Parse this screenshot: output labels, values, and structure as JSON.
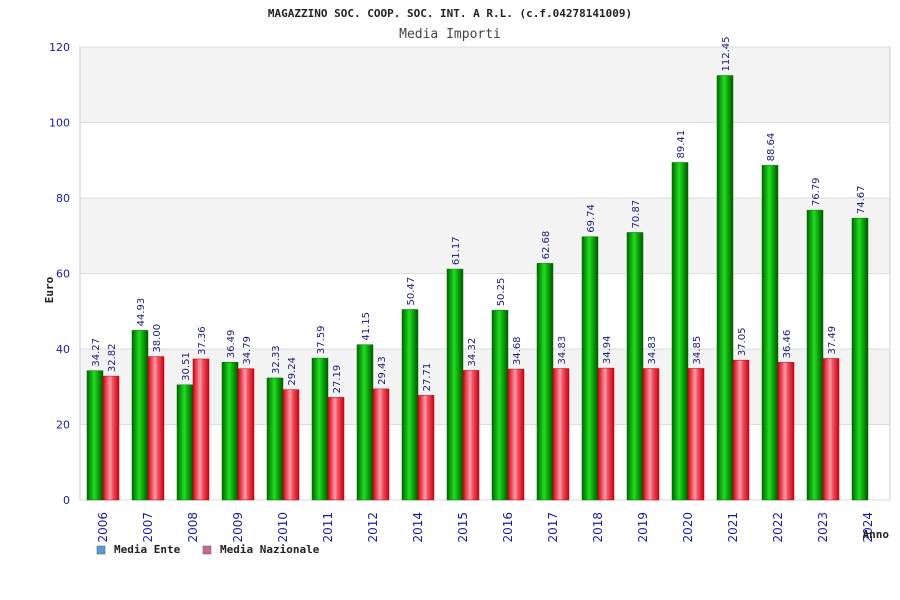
{
  "chart_data": {
    "type": "bar",
    "title": "MAGAZZINO SOC. COOP. SOC. INT. A R.L. (c.f.04278141009)",
    "subtitle": "Media Importi",
    "xlabel": "Anno",
    "ylabel": "Euro",
    "ylim": [
      0,
      120
    ],
    "yticks": [
      0,
      20,
      40,
      60,
      80,
      100,
      120
    ],
    "grid": true,
    "legend_position": "bottom-left",
    "categories": [
      "2006",
      "2007",
      "2008",
      "2009",
      "2010",
      "2011",
      "2012",
      "2014",
      "2015",
      "2016",
      "2017",
      "2018",
      "2019",
      "2020",
      "2021",
      "2022",
      "2023",
      "2024"
    ],
    "series": [
      {
        "name": "Media Ente",
        "color": "#00cc00",
        "legend_color": "#5b9bd5",
        "values": [
          34.27,
          44.93,
          30.51,
          36.49,
          32.33,
          37.59,
          41.15,
          50.47,
          61.17,
          50.25,
          62.68,
          69.74,
          70.87,
          89.41,
          112.45,
          88.64,
          76.79,
          74.67
        ],
        "labels": [
          "34.27",
          "44.93",
          "30.51",
          "36.49",
          "32.33",
          "37.59",
          "41.15",
          "50.47",
          "61.17",
          "50.25",
          "62.68",
          "69.74",
          "70.87",
          "89.41",
          "112.45",
          "88.64",
          "76.79",
          "74.67"
        ]
      },
      {
        "name": "Media Nazionale",
        "color": "#ee2233",
        "legend_color": "#cc6699",
        "values": [
          32.82,
          38.0,
          37.36,
          34.79,
          29.24,
          27.19,
          29.43,
          27.71,
          34.32,
          34.68,
          34.83,
          34.94,
          34.83,
          34.85,
          37.05,
          36.46,
          37.49,
          null
        ],
        "labels": [
          "32.82",
          "38.00",
          "37.36",
          "34.79",
          "29.24",
          "27.19",
          "29.43",
          "27.71",
          "34.32",
          "34.68",
          "34.83",
          "34.94",
          "34.83",
          "34.85",
          "37.05",
          "36.46",
          "37.49",
          null
        ]
      }
    ]
  }
}
